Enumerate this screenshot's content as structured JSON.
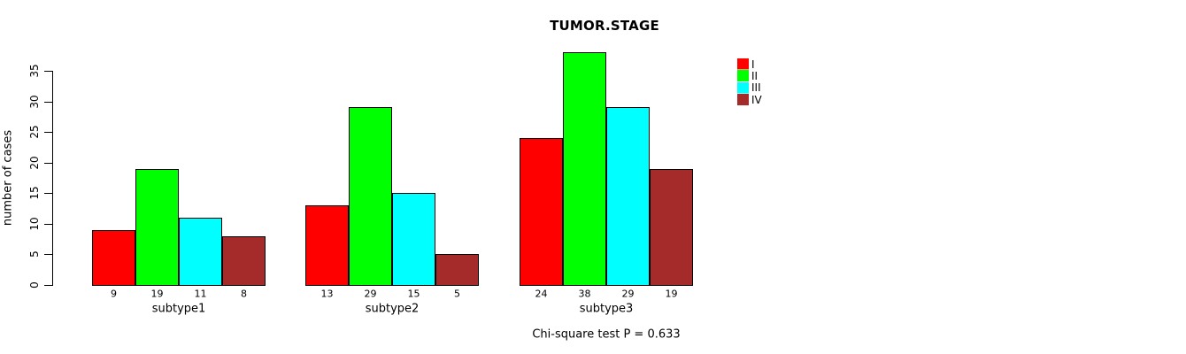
{
  "chart_data": {
    "type": "bar",
    "title": "TUMOR.STAGE",
    "xlabel": "",
    "ylabel": "number of cases",
    "categories": [
      "subtype1",
      "subtype2",
      "subtype3"
    ],
    "series": [
      {
        "name": "I",
        "color": "#FF0000",
        "values": [
          9,
          13,
          24
        ]
      },
      {
        "name": "II",
        "color": "#00FF00",
        "values": [
          19,
          29,
          38
        ]
      },
      {
        "name": "III",
        "color": "#00FFFF",
        "values": [
          11,
          15,
          29
        ]
      },
      {
        "name": "IV",
        "color": "#A52A2A",
        "values": [
          8,
          5,
          19
        ]
      }
    ],
    "bar_value_labels": [
      [
        9,
        19,
        11,
        8
      ],
      [
        13,
        29,
        15,
        5
      ],
      [
        24,
        38,
        29,
        19
      ]
    ],
    "yticks": [
      0,
      5,
      10,
      15,
      20,
      25,
      30,
      35
    ],
    "ylim": [
      0,
      35
    ],
    "grid": false,
    "legend_position": "top-right",
    "legend": [
      {
        "label": "I",
        "color": "#FF0000"
      },
      {
        "label": "II",
        "color": "#00FF00"
      },
      {
        "label": "III",
        "color": "#00FFFF"
      },
      {
        "label": "IV",
        "color": "#A52A2A"
      }
    ],
    "annotation": "Chi-square test P = 0.633",
    "background_color": "#FFFFFF",
    "axis_color": "#000000"
  }
}
